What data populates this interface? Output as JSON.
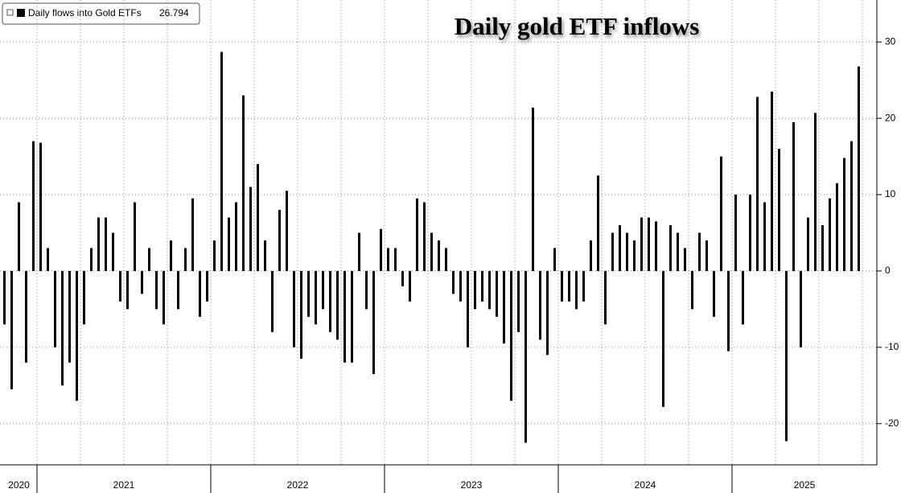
{
  "chart_data": {
    "type": "bar",
    "title": "Daily gold ETF inflows",
    "categories": [
      "2020",
      null,
      null,
      null,
      null,
      "2021",
      null,
      null,
      null,
      null,
      null,
      null,
      null,
      null,
      null,
      null,
      null,
      null,
      null,
      null,
      null,
      null,
      null,
      null,
      null,
      null,
      null,
      null,
      null,
      "2022",
      null,
      null,
      null,
      null,
      null,
      null,
      null,
      null,
      null,
      null,
      null,
      null,
      null,
      null,
      null,
      null,
      null,
      null,
      null,
      null,
      null,
      null,
      null,
      "2023",
      null,
      null,
      null,
      null,
      null,
      null,
      null,
      null,
      null,
      null,
      null,
      null,
      null,
      null,
      null,
      null,
      null,
      null,
      null,
      null,
      null,
      null,
      null,
      "2024",
      null,
      null,
      null,
      null,
      null,
      null,
      null,
      null,
      null,
      null,
      null,
      null,
      null,
      null,
      null,
      null,
      null,
      null,
      null,
      null,
      null,
      null,
      null,
      "2025",
      null,
      null,
      null,
      null,
      null,
      null,
      null,
      null,
      null,
      null,
      null,
      null,
      null,
      null,
      null,
      null,
      null
    ],
    "series": [
      {
        "name": "Daily flows into Gold ETFs",
        "color": "#000000",
        "values": [
          -7,
          -15.5,
          9,
          -12,
          17,
          16.8,
          3,
          -10,
          -15,
          -12,
          -17,
          -7,
          3,
          7,
          7,
          5,
          -4,
          -5,
          9,
          -3,
          3,
          -5,
          -7,
          4,
          -5,
          3,
          9.5,
          -6,
          -4,
          4,
          28.7,
          7,
          9,
          23,
          11,
          14,
          4,
          -8,
          8,
          10.5,
          -10,
          -11.5,
          -6,
          -7,
          -5,
          -8,
          -9,
          -12,
          -12,
          5,
          -5,
          -13.5,
          5.5,
          3,
          3,
          -2,
          -4,
          9.5,
          9,
          5,
          4,
          3,
          -3,
          -4,
          -10,
          -5,
          -4,
          -5,
          -6,
          -9.5,
          -17,
          -8,
          -22.5,
          21.4,
          -9,
          -11,
          3,
          -4,
          -4,
          -5,
          -4,
          4,
          12.5,
          -7,
          5,
          6,
          5,
          4,
          7,
          7,
          6.5,
          -17.8,
          6,
          5,
          3,
          -5,
          5,
          4,
          -6,
          15,
          -10.5,
          10,
          -7,
          10,
          22.8,
          9,
          23.5,
          16,
          -22.3,
          19.5,
          -10,
          7,
          20.7,
          6,
          9.5,
          11.5,
          14.8,
          17,
          26.794
        ]
      }
    ],
    "ylim": [
      -25.4,
      35.5
    ],
    "yticks": [
      30,
      20,
      10,
      0,
      -10,
      -20
    ],
    "grid": true
  }
}
